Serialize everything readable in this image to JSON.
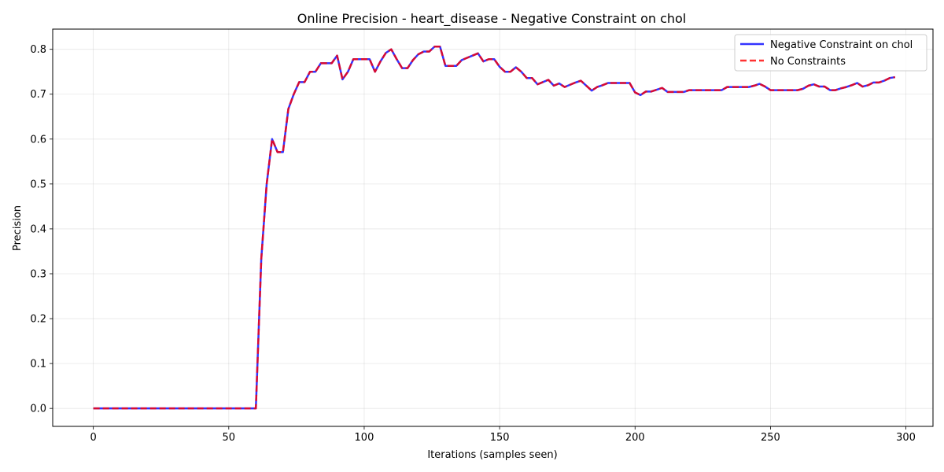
{
  "chart_data": {
    "type": "line",
    "title": "Online Precision - heart_disease - Negative Constraint on chol",
    "xlabel": "Iterations (samples seen)",
    "ylabel": "Precision",
    "xlim": [
      -15,
      310
    ],
    "ylim": [
      -0.04,
      0.845
    ],
    "xticks": [
      0,
      50,
      100,
      150,
      200,
      250,
      300
    ],
    "yticks": [
      0.0,
      0.1,
      0.2,
      0.3,
      0.4,
      0.5,
      0.6,
      0.7,
      0.8
    ],
    "ytick_labels": [
      "0.0",
      "0.1",
      "0.2",
      "0.3",
      "0.4",
      "0.5",
      "0.6",
      "0.7",
      "0.8"
    ],
    "grid": true,
    "legend_position": "top-right",
    "series": [
      {
        "name": "Negative Constraint on chol",
        "color": "#0000ff",
        "style": "solid",
        "x": [
          0,
          10,
          20,
          30,
          40,
          50,
          60,
          62,
          64,
          66,
          68,
          70,
          72,
          74,
          76,
          78,
          80,
          82,
          84,
          86,
          88,
          90,
          92,
          94,
          96,
          98,
          100,
          102,
          104,
          106,
          108,
          110,
          112,
          114,
          116,
          118,
          120,
          122,
          124,
          126,
          128,
          130,
          132,
          134,
          136,
          138,
          140,
          142,
          144,
          146,
          148,
          150,
          152,
          154,
          156,
          158,
          160,
          162,
          164,
          166,
          168,
          170,
          172,
          174,
          176,
          178,
          180,
          182,
          184,
          186,
          188,
          190,
          192,
          194,
          196,
          198,
          200,
          202,
          204,
          206,
          208,
          210,
          212,
          214,
          216,
          218,
          220,
          222,
          224,
          226,
          228,
          230,
          232,
          234,
          236,
          238,
          240,
          242,
          244,
          246,
          248,
          250,
          252,
          254,
          256,
          258,
          260,
          262,
          264,
          266,
          268,
          270,
          272,
          274,
          276,
          278,
          280,
          282,
          284,
          286,
          288,
          290,
          292,
          294,
          296
        ],
        "y": [
          0.0,
          0.0,
          0.0,
          0.0,
          0.0,
          0.0,
          0.0,
          0.333,
          0.5,
          0.6,
          0.571,
          0.571,
          0.667,
          0.7,
          0.727,
          0.727,
          0.75,
          0.75,
          0.769,
          0.769,
          0.769,
          0.786,
          0.733,
          0.75,
          0.778,
          0.778,
          0.778,
          0.778,
          0.75,
          0.773,
          0.792,
          0.8,
          0.778,
          0.758,
          0.758,
          0.776,
          0.789,
          0.795,
          0.795,
          0.806,
          0.806,
          0.763,
          0.763,
          0.763,
          0.776,
          0.781,
          0.786,
          0.791,
          0.773,
          0.778,
          0.778,
          0.761,
          0.75,
          0.75,
          0.76,
          0.75,
          0.736,
          0.736,
          0.722,
          0.727,
          0.732,
          0.719,
          0.724,
          0.716,
          0.721,
          0.726,
          0.73,
          0.719,
          0.708,
          0.716,
          0.72,
          0.725,
          0.725,
          0.725,
          0.725,
          0.725,
          0.704,
          0.698,
          0.706,
          0.706,
          0.71,
          0.714,
          0.705,
          0.705,
          0.705,
          0.705,
          0.709,
          0.709,
          0.709,
          0.709,
          0.709,
          0.709,
          0.709,
          0.716,
          0.716,
          0.716,
          0.716,
          0.716,
          0.719,
          0.723,
          0.717,
          0.709,
          0.709,
          0.709,
          0.709,
          0.709,
          0.709,
          0.712,
          0.719,
          0.722,
          0.717,
          0.717,
          0.709,
          0.709,
          0.713,
          0.716,
          0.72,
          0.725,
          0.717,
          0.72,
          0.726,
          0.726,
          0.73,
          0.736,
          0.738
        ]
      },
      {
        "name": "No Constraints",
        "color": "#ff0000",
        "style": "dashed",
        "same_as_series": 0
      }
    ]
  }
}
